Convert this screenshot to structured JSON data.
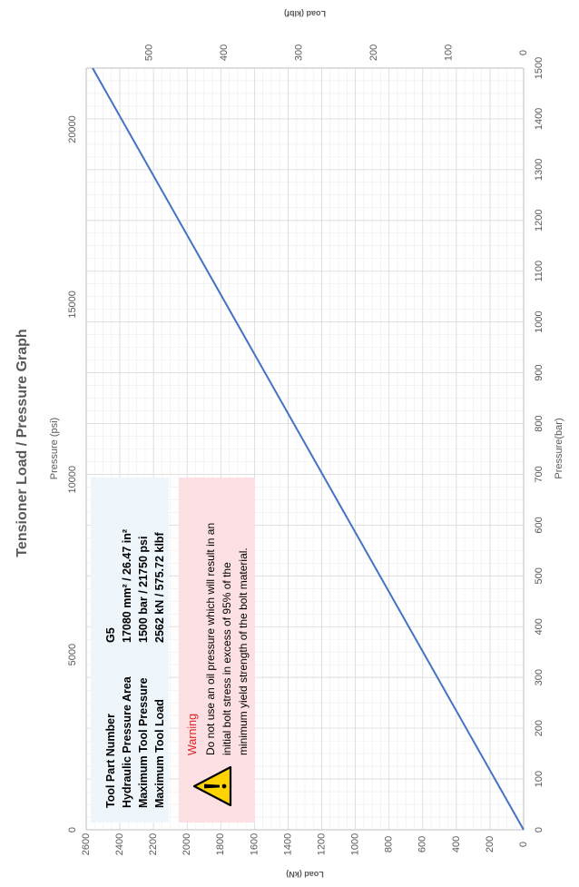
{
  "chart_data": {
    "type": "line",
    "title": "Tensioner Load / Pressure Graph",
    "x_primary": {
      "label": "Pressure(bar)",
      "range": [
        0,
        1500
      ],
      "ticks": [
        0,
        100,
        200,
        300,
        400,
        500,
        600,
        700,
        800,
        900,
        1000,
        1100,
        1200,
        1300,
        1400,
        1500
      ]
    },
    "x_secondary": {
      "label": "Pressure (psi)",
      "range": [
        0,
        21750
      ],
      "ticks": [
        0,
        5000,
        10000,
        15000,
        20000
      ]
    },
    "y_primary": {
      "label": "Load (kN)",
      "range": [
        0,
        2600
      ],
      "ticks": [
        0,
        200,
        400,
        600,
        800,
        1000,
        1200,
        1400,
        1600,
        1800,
        2000,
        2200,
        2400,
        2600
      ]
    },
    "y_secondary": {
      "label": "Load (klbf)",
      "range": [
        0,
        584.5
      ],
      "ticks": [
        0,
        100,
        200,
        300,
        400,
        500
      ]
    },
    "grid": true,
    "series": [
      {
        "x": [
          0,
          1500
        ],
        "values": [
          0,
          2562
        ],
        "color": "#4472c4"
      }
    ],
    "orientation": "rotated 90° counter-clockwise"
  },
  "info_box": {
    "rows": [
      {
        "label": "Tool Part Number",
        "value": "G5"
      },
      {
        "label": "Hydraulic Pressure Area",
        "value": "17080  mm² / 26.47  in²"
      },
      {
        "label": "Maximum Tool Pressure",
        "value": "1500  bar / 21750  psi"
      },
      {
        "label": "Maximum Tool Load",
        "value": "2562  kN / 575.72  klbf"
      }
    ]
  },
  "warning_box": {
    "title": "Warning",
    "lines": [
      "Do not use an oil pressure which will result in an",
      "initial bolt stress in excess of 95% of the",
      "minimum yield strength of the bolt material."
    ],
    "icon": "warning-icon"
  },
  "colors": {
    "line": "#4472c4",
    "grid": "#d9d9d9",
    "info_bg": "#eef6fc",
    "warning_bg": "#fde0e3",
    "warning_title": "#e02020",
    "warning_icon": "#ffd200"
  }
}
